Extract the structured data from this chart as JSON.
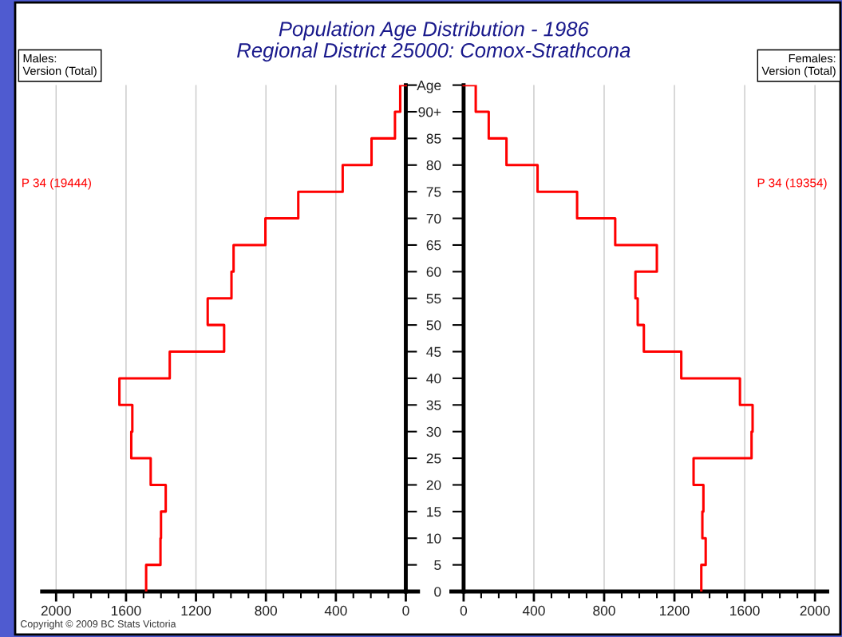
{
  "chart_data": [
    {
      "type": "step",
      "orientation": "horizontal",
      "title": "Population Age Distribution - 1986\nRegional District 25000: Comox-Strathcona",
      "annotations": [
        "Males:\nVersion (Total)",
        "Copyright © 2009 BC Stats Victoria"
      ],
      "series": [
        {
          "name": "P 34 (19444)",
          "color": "#ff0000",
          "x": [
            0,
            5,
            10,
            15,
            20,
            25,
            30,
            35,
            40,
            45,
            50,
            55,
            60,
            65,
            70,
            75,
            80,
            85,
            90,
            95
          ],
          "values": [
            1485,
            1403,
            1400,
            1373,
            1459,
            1570,
            1564,
            1638,
            1350,
            1039,
            1133,
            997,
            985,
            803,
            615,
            361,
            196,
            62,
            32,
            0
          ]
        }
      ],
      "xlim": [
        2080,
        -70
      ],
      "ylim": [
        0,
        95
      ],
      "xticks": [
        0,
        {
          "value": 100,
          "label": null
        },
        {
          "value": 200,
          "label": null
        },
        {
          "value": 300,
          "label": null
        },
        400,
        {
          "value": 500,
          "label": null
        },
        {
          "value": 600,
          "label": null
        },
        {
          "value": 700,
          "label": null
        },
        800,
        {
          "value": 900,
          "label": null
        },
        {
          "value": 1000,
          "label": null
        },
        {
          "value": 1100,
          "label": null
        },
        1200,
        {
          "value": 1300,
          "label": null
        },
        {
          "value": 1400,
          "label": null
        },
        {
          "value": 1500,
          "label": null
        },
        1600,
        {
          "value": 1700,
          "label": null
        },
        {
          "value": 1800,
          "label": null
        },
        {
          "value": 1900,
          "label": null
        },
        2000
      ],
      "yticks": [
        {
          "value": 0,
          "label": null
        },
        {
          "value": 5,
          "label": null
        },
        {
          "value": 10,
          "label": null
        },
        {
          "value": 15,
          "label": null
        },
        {
          "value": 20,
          "label": null
        },
        {
          "value": 25,
          "label": null
        },
        {
          "value": 30,
          "label": null
        },
        {
          "value": 35,
          "label": null
        },
        {
          "value": 40,
          "label": null
        },
        {
          "value": 45,
          "label": null
        },
        {
          "value": 50,
          "label": null
        },
        {
          "value": 55,
          "label": null
        },
        {
          "value": 60,
          "label": null
        },
        {
          "value": 65,
          "label": null
        },
        {
          "value": 70,
          "label": null
        },
        {
          "value": 75,
          "label": null
        },
        {
          "value": 80,
          "label": null
        },
        {
          "value": 85,
          "label": null
        },
        {
          "value": 90,
          "label": null
        },
        {
          "value": 95,
          "label": null
        }
      ],
      "tick_labels": "x",
      "grid": "x",
      "legend": false
    },
    {
      "type": "step",
      "orientation": "horizontal",
      "annotations": [
        "Females:\nVersion (Total)"
      ],
      "series": [
        {
          "name": "P 34 (19354)",
          "color": "#ff0000",
          "x": [
            0,
            5,
            10,
            15,
            20,
            25,
            30,
            35,
            40,
            45,
            50,
            55,
            60,
            65,
            70,
            75,
            80,
            85,
            90,
            95
          ],
          "values": [
            1353,
            1378,
            1359,
            1365,
            1309,
            1639,
            1645,
            1573,
            1239,
            1026,
            991,
            978,
            1100,
            863,
            646,
            421,
            244,
            143,
            69,
            0
          ]
        }
      ],
      "xlim": [
        -70,
        2070
      ],
      "ylim": [
        0,
        95
      ],
      "xticks": [
        0,
        {
          "value": 100,
          "label": null
        },
        {
          "value": 200,
          "label": null
        },
        {
          "value": 300,
          "label": null
        },
        400,
        {
          "value": 500,
          "label": null
        },
        {
          "value": 600,
          "label": null
        },
        {
          "value": 700,
          "label": null
        },
        800,
        {
          "value": 900,
          "label": null
        },
        {
          "value": 1000,
          "label": null
        },
        {
          "value": 1100,
          "label": null
        },
        1200,
        {
          "value": 1300,
          "label": null
        },
        {
          "value": 1400,
          "label": null
        },
        {
          "value": 1500,
          "label": null
        },
        1600,
        {
          "value": 1700,
          "label": null
        },
        {
          "value": 1800,
          "label": null
        },
        {
          "value": 1900,
          "label": null
        },
        2000
      ],
      "yticks": [
        0,
        5,
        10,
        15,
        20,
        25,
        30,
        35,
        40,
        45,
        50,
        55,
        60,
        65,
        70,
        75,
        80,
        85,
        {
          "value": 90,
          "label": "90+"
        },
        {
          "value": 95,
          "label": "Age"
        }
      ],
      "grid": "x",
      "legend": false
    }
  ]
}
